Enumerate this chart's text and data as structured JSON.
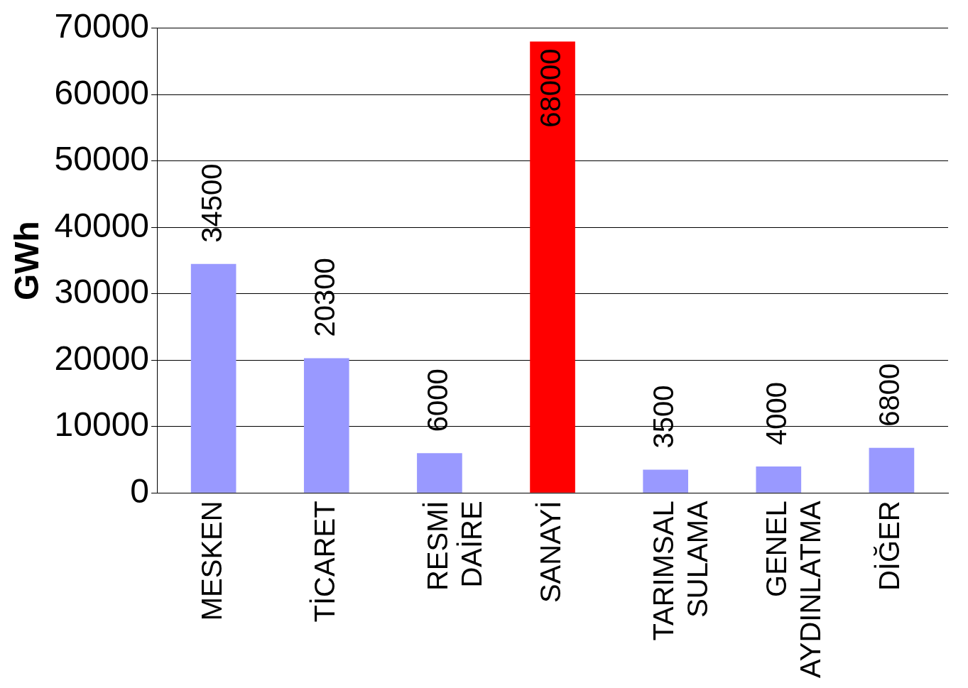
{
  "chart_data": {
    "type": "bar",
    "ylabel": "GWh",
    "categories": [
      "MESKEN",
      "TİCARET",
      "RESMİ DAİRE",
      "SANAYİ",
      "TARIMSAL SULAMA",
      "GENEL AYDINLATMA",
      "DİĞER"
    ],
    "values": [
      34500,
      20300,
      6000,
      68000,
      3500,
      4000,
      6800
    ],
    "colors": [
      "#9999ff",
      "#9999ff",
      "#9999ff",
      "#ff0000",
      "#9999ff",
      "#9999ff",
      "#9999ff"
    ],
    "ylim": [
      0,
      70000
    ],
    "yticks": [
      0,
      10000,
      20000,
      30000,
      40000,
      50000,
      60000,
      70000
    ],
    "grid": "y",
    "legend": false,
    "data_labels": true
  }
}
